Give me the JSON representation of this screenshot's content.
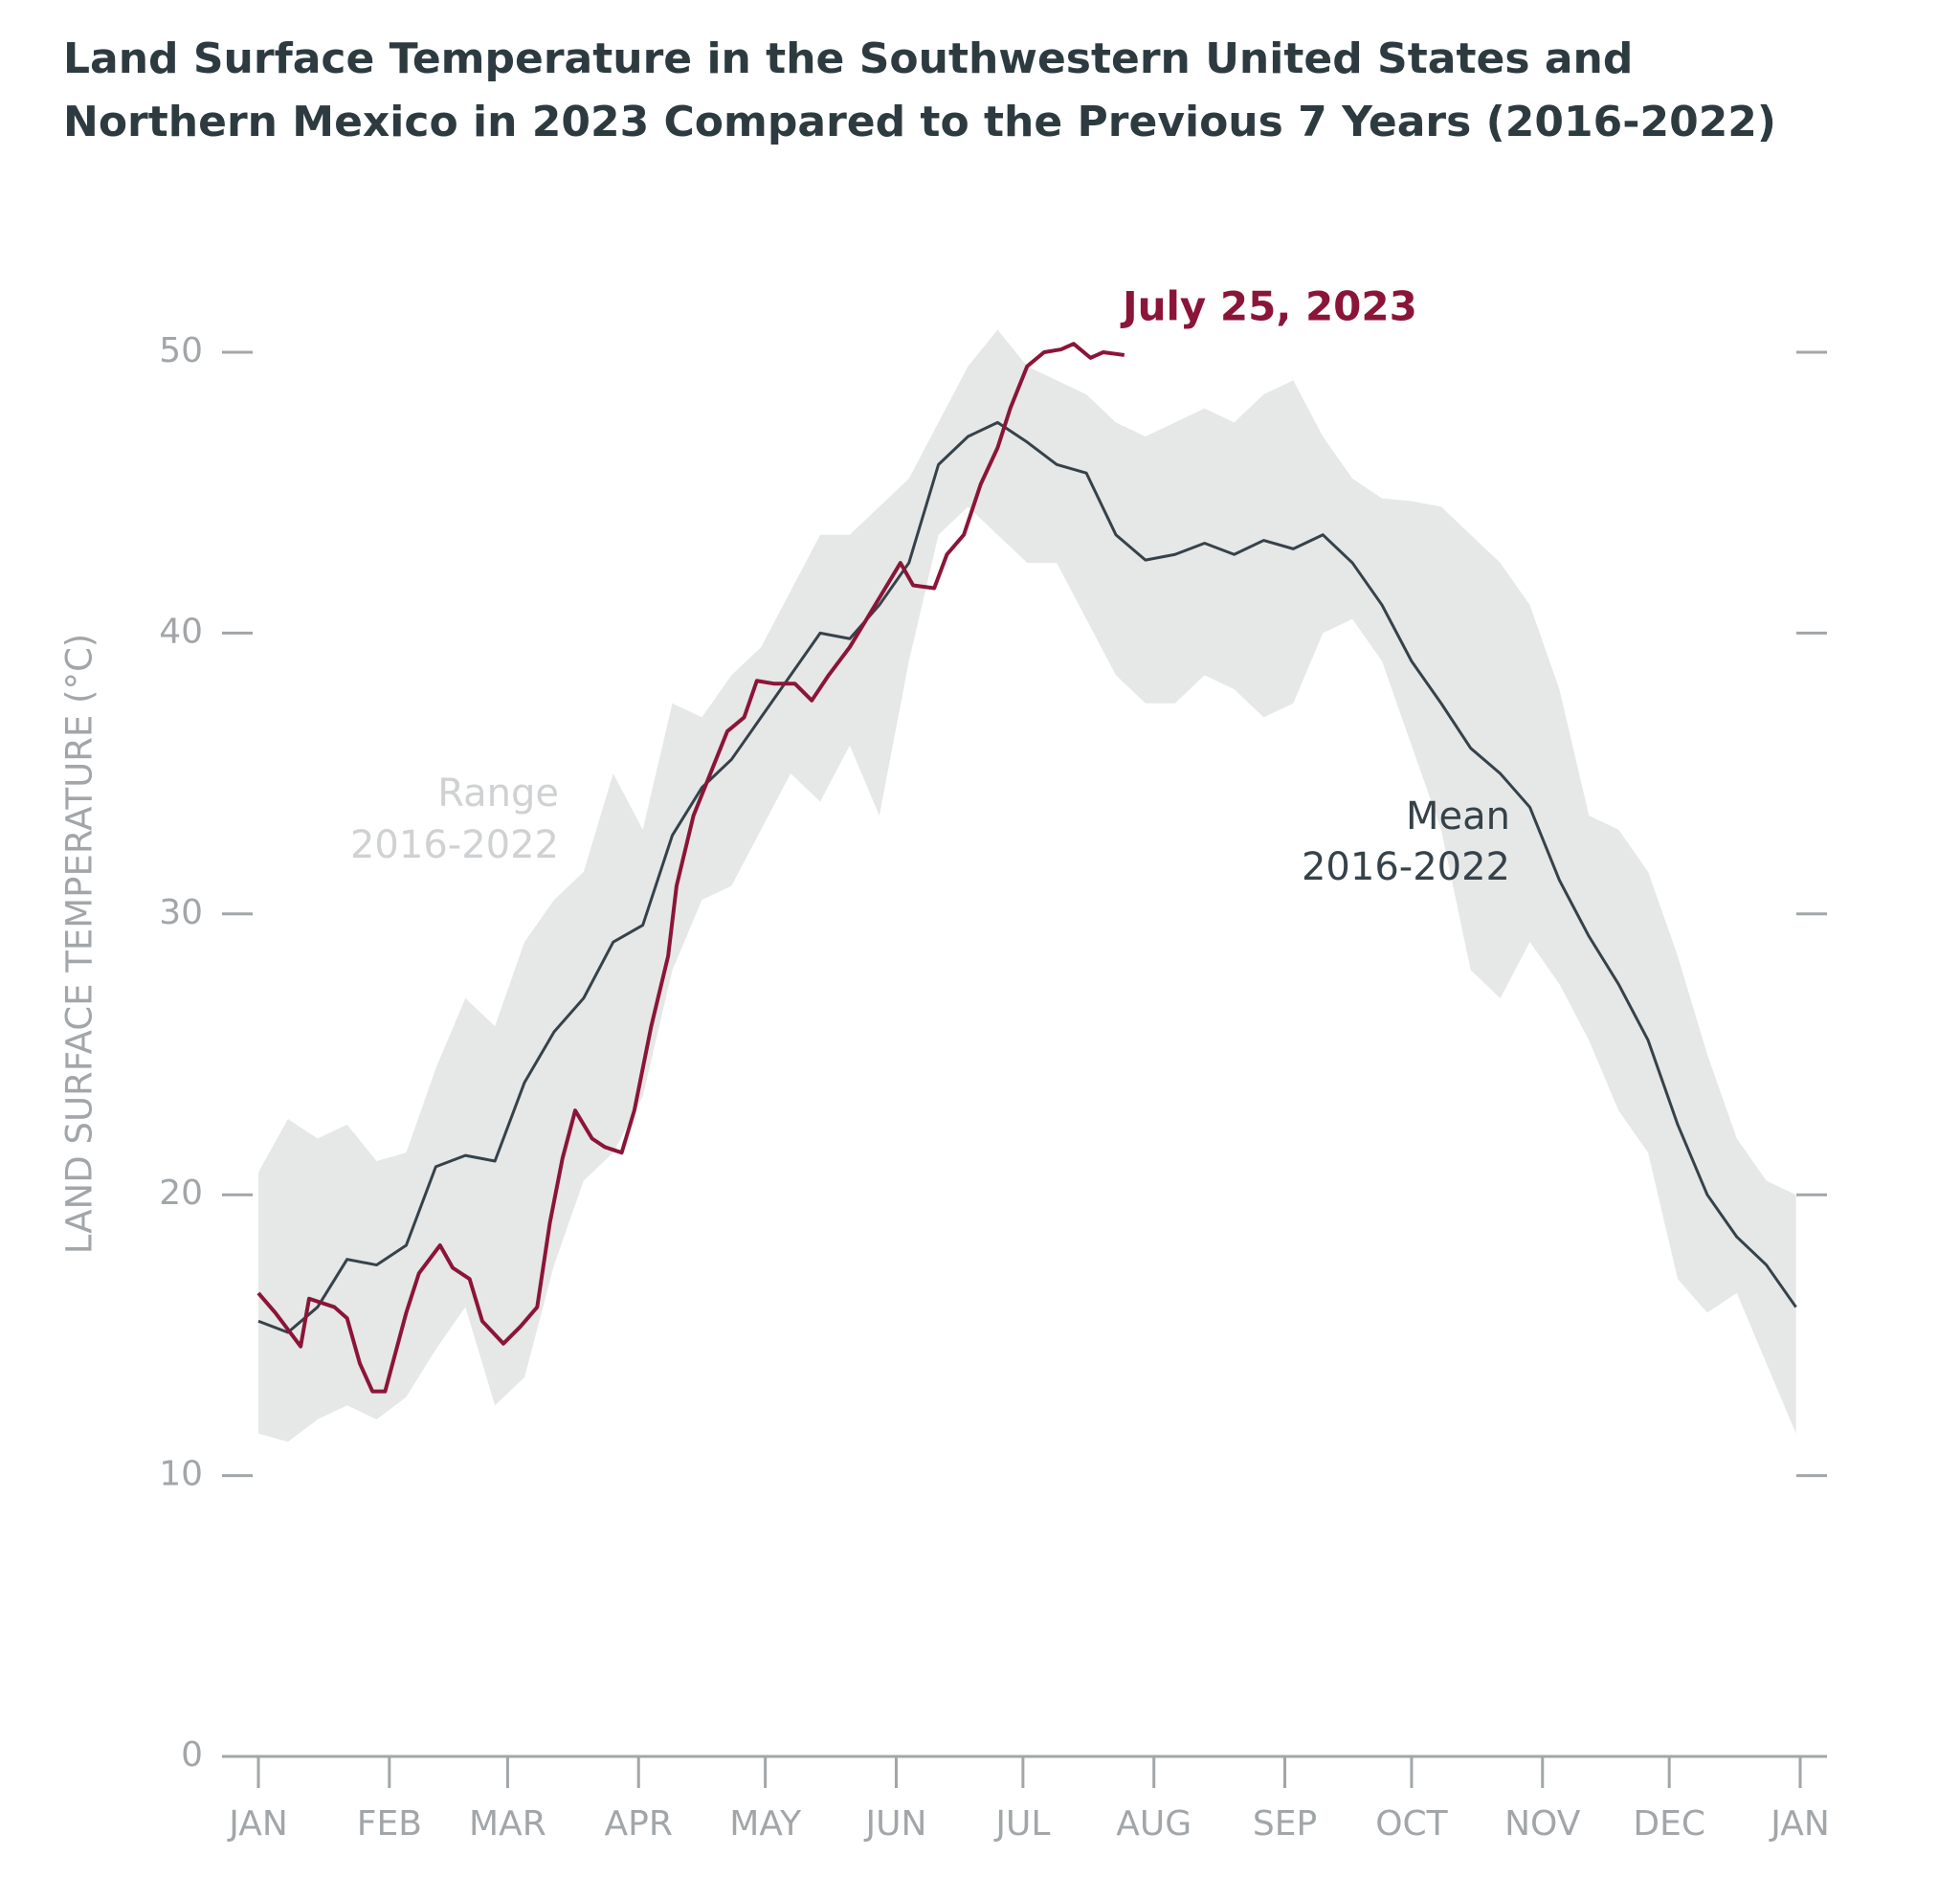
{
  "chart_data": {
    "type": "line",
    "title": [
      "Land Surface Temperature in the Southwestern United States and",
      "Northern Mexico in 2023 Compared to the Previous 7 Years (2016-2022)"
    ],
    "y_label": "LAND SURFACE TEMPERATURE (°C)",
    "xlim": [
      0,
      365
    ],
    "xticks": [
      {
        "value": 0,
        "label": "JAN"
      },
      {
        "value": 31,
        "label": "FEB"
      },
      {
        "value": 59,
        "label": "MAR"
      },
      {
        "value": 90,
        "label": "APR"
      },
      {
        "value": 120,
        "label": "MAY"
      },
      {
        "value": 151,
        "label": "JUN"
      },
      {
        "value": 181,
        "label": "JUL"
      },
      {
        "value": 212,
        "label": "AUG"
      },
      {
        "value": 243,
        "label": "SEP"
      },
      {
        "value": 273,
        "label": "OCT"
      },
      {
        "value": 304,
        "label": "NOV"
      },
      {
        "value": 334,
        "label": "DEC"
      },
      {
        "value": 365,
        "label": "JAN"
      }
    ],
    "ylim": [
      0,
      50
    ],
    "yticks": [
      0,
      10,
      20,
      30,
      40,
      50
    ],
    "x": [
      0,
      7,
      14,
      21,
      28,
      35,
      42,
      49,
      56,
      63,
      70,
      77,
      84,
      91,
      98,
      105,
      112,
      119,
      126,
      133,
      140,
      147,
      154,
      161,
      168,
      175,
      182,
      189,
      196,
      203,
      210,
      217,
      224,
      231,
      238,
      245,
      252,
      259,
      266,
      273,
      280,
      287,
      294,
      301,
      308,
      315,
      322,
      329,
      336,
      343,
      350,
      357,
      364
    ],
    "band": {
      "name": [
        "Range",
        "2016-2022"
      ],
      "color": "#e6e7e7",
      "upper": [
        20.8,
        22.7,
        22.0,
        22.5,
        21.2,
        21.5,
        24.5,
        27.0,
        26.0,
        29.0,
        30.5,
        31.5,
        35.0,
        33.0,
        37.5,
        37.0,
        38.5,
        39.5,
        41.5,
        43.5,
        43.5,
        44.5,
        45.5,
        47.5,
        49.5,
        50.8,
        49.5,
        49.0,
        48.5,
        47.5,
        47.0,
        47.5,
        48.0,
        47.5,
        48.5,
        49.0,
        47.0,
        45.5,
        44.8,
        44.7,
        44.5,
        43.5,
        42.5,
        41.0,
        38.0,
        33.5,
        33.0,
        31.5,
        28.5,
        25.0,
        22.0,
        20.5,
        20.0
      ],
      "lower": [
        11.5,
        11.2,
        12.0,
        12.5,
        12.0,
        12.8,
        14.5,
        16.0,
        12.5,
        13.5,
        17.5,
        20.5,
        21.5,
        23.5,
        28.0,
        30.5,
        31.0,
        33.0,
        35.0,
        34.0,
        36.0,
        33.5,
        39.0,
        43.5,
        44.5,
        43.5,
        42.5,
        42.5,
        40.5,
        38.5,
        37.5,
        37.5,
        38.5,
        38.0,
        37.0,
        37.5,
        40.0,
        40.5,
        39.0,
        36.0,
        33.0,
        28.0,
        27.0,
        29.0,
        27.5,
        25.5,
        23.0,
        21.5,
        17.0,
        15.8,
        16.5,
        14.0,
        11.5
      ]
    },
    "series": [
      {
        "name": [
          "Mean",
          "2016-2022"
        ],
        "color": "#36424a",
        "values": [
          15.5,
          15.1,
          16.0,
          17.7,
          17.5,
          18.2,
          21.0,
          21.4,
          21.2,
          24.0,
          25.8,
          27.0,
          29.0,
          29.6,
          32.8,
          34.5,
          35.5,
          37.0,
          38.5,
          40.0,
          39.8,
          41.0,
          42.5,
          46.0,
          47.0,
          47.5,
          46.8,
          46.0,
          45.7,
          43.5,
          42.6,
          42.8,
          43.2,
          42.8,
          43.3,
          43.0,
          43.5,
          42.5,
          41.0,
          39.0,
          37.5,
          35.9,
          35.0,
          33.8,
          31.2,
          29.2,
          27.5,
          25.5,
          22.5,
          20.0,
          18.5,
          17.5,
          16.0
        ]
      },
      {
        "name": [
          "July 25, 2023"
        ],
        "color": "#8b1538",
        "x": [
          0,
          4,
          10,
          12,
          18,
          21,
          24,
          27,
          30,
          35,
          38,
          43,
          46,
          50,
          53,
          58,
          62,
          66,
          69,
          72,
          75,
          79,
          82,
          86,
          89,
          93,
          97,
          99,
          103,
          107,
          111,
          115,
          118,
          122,
          127,
          131,
          135,
          140,
          144,
          148,
          152,
          155,
          160,
          163,
          167,
          171,
          175,
          178,
          182,
          186,
          190,
          193,
          197,
          200,
          205
        ],
        "values": [
          16.5,
          15.8,
          14.6,
          16.3,
          16.0,
          15.6,
          14.0,
          13.0,
          13.0,
          15.8,
          17.2,
          18.2,
          17.4,
          17.0,
          15.5,
          14.7,
          15.3,
          16.0,
          19.0,
          21.3,
          23.0,
          22.0,
          21.7,
          21.5,
          23.0,
          26.0,
          28.5,
          31.0,
          33.5,
          35.0,
          36.5,
          37.0,
          38.3,
          38.2,
          38.2,
          37.6,
          38.5,
          39.5,
          40.5,
          41.5,
          42.5,
          41.7,
          41.6,
          42.8,
          43.5,
          45.3,
          46.6,
          48.0,
          49.5,
          50.0,
          50.1,
          50.3,
          49.8,
          50.0,
          49.9
        ]
      }
    ]
  }
}
